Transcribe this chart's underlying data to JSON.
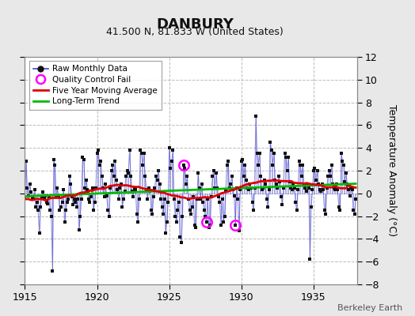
{
  "title": "DANBURY",
  "subtitle": "41.500 N, 81.833 W (United States)",
  "ylabel": "Temperature Anomaly (°C)",
  "credit": "Berkeley Earth",
  "xlim": [
    1915,
    1938
  ],
  "ylim": [
    -8,
    12
  ],
  "yticks": [
    -8,
    -6,
    -4,
    -2,
    0,
    2,
    4,
    6,
    8,
    10,
    12
  ],
  "xticks": [
    1915,
    1920,
    1925,
    1930,
    1935
  ],
  "background_color": "#e8e8e8",
  "plot_bg_color": "#ffffff",
  "raw_line_color": "#4444cc",
  "raw_marker_color": "#111111",
  "moving_avg_color": "#dd0000",
  "trend_color": "#00bb00",
  "qc_fail_color": "#ff00ff",
  "grid_color": "#bbbbbb",
  "raw_data": [
    1915.0,
    -0.3,
    1915.083,
    2.8,
    1915.167,
    0.5,
    1915.25,
    -0.2,
    1915.333,
    0.8,
    1915.417,
    0.1,
    1915.5,
    -0.4,
    1915.583,
    -0.5,
    1915.667,
    0.3,
    1915.75,
    -1.2,
    1915.833,
    -0.8,
    1915.917,
    -1.5,
    1916.0,
    -3.5,
    1916.083,
    -1.2,
    1916.167,
    -0.3,
    1916.25,
    0.1,
    1916.333,
    -0.5,
    1916.417,
    -0.2,
    1916.5,
    -0.8,
    1916.583,
    -0.9,
    1916.667,
    -0.3,
    1916.75,
    -1.5,
    1916.833,
    -2.0,
    1916.917,
    -6.8,
    1917.0,
    3.0,
    1917.083,
    2.5,
    1917.167,
    -0.2,
    1917.25,
    0.5,
    1917.333,
    -0.3,
    1917.417,
    -1.5,
    1917.5,
    -1.2,
    1917.583,
    -0.8,
    1917.667,
    0.3,
    1917.75,
    -2.5,
    1917.833,
    -1.5,
    1917.917,
    -0.8,
    1918.0,
    -0.5,
    1918.083,
    1.5,
    1918.167,
    0.8,
    1918.25,
    -0.3,
    1918.333,
    -1.0,
    1918.417,
    -0.5,
    1918.5,
    -0.8,
    1918.583,
    -1.2,
    1918.667,
    -0.5,
    1918.75,
    -3.2,
    1918.833,
    -2.0,
    1918.917,
    -0.5,
    1919.0,
    3.2,
    1919.083,
    3.0,
    1919.167,
    0.5,
    1919.25,
    1.2,
    1919.333,
    0.3,
    1919.417,
    -0.5,
    1919.5,
    -0.8,
    1919.583,
    -0.3,
    1919.667,
    0.5,
    1919.75,
    -1.5,
    1919.833,
    -0.8,
    1919.917,
    0.5,
    1920.0,
    3.5,
    1920.083,
    3.8,
    1920.167,
    2.5,
    1920.25,
    2.8,
    1920.333,
    1.5,
    1920.417,
    0.5,
    1920.5,
    -0.3,
    1920.583,
    0.8,
    1920.667,
    -0.2,
    1920.75,
    -1.5,
    1920.833,
    -2.0,
    1920.917,
    0.5,
    1921.0,
    2.0,
    1921.083,
    2.5,
    1921.167,
    1.5,
    1921.25,
    2.8,
    1921.333,
    1.2,
    1921.417,
    0.3,
    1921.5,
    -0.5,
    1921.583,
    0.5,
    1921.667,
    0.8,
    1921.75,
    -1.2,
    1921.833,
    -0.5,
    1921.917,
    0.2,
    1922.0,
    1.5,
    1922.083,
    2.0,
    1922.167,
    1.8,
    1922.25,
    3.8,
    1922.333,
    1.5,
    1922.417,
    0.2,
    1922.5,
    -0.3,
    1922.583,
    0.5,
    1922.667,
    0.3,
    1922.75,
    -1.8,
    1922.833,
    -2.5,
    1922.917,
    -0.5,
    1923.0,
    3.8,
    1923.083,
    3.5,
    1923.167,
    2.5,
    1923.25,
    3.5,
    1923.333,
    1.5,
    1923.417,
    0.3,
    1923.5,
    -0.5,
    1923.583,
    0.5,
    1923.667,
    0.2,
    1923.75,
    -1.5,
    1923.833,
    -1.8,
    1923.917,
    -0.3,
    1924.0,
    0.5,
    1924.083,
    1.5,
    1924.167,
    1.2,
    1924.25,
    2.0,
    1924.333,
    0.8,
    1924.417,
    -0.5,
    1924.5,
    -1.2,
    1924.583,
    -1.8,
    1924.667,
    -0.5,
    1924.75,
    -3.5,
    1924.833,
    -2.5,
    1924.917,
    -0.8,
    1925.0,
    4.0,
    1925.083,
    2.2,
    1925.167,
    2.8,
    1925.25,
    3.8,
    1925.333,
    -0.5,
    1925.417,
    -2.0,
    1925.5,
    -2.5,
    1925.583,
    -1.5,
    1925.667,
    -0.8,
    1925.75,
    -3.8,
    1925.833,
    -4.3,
    1925.917,
    -2.0,
    1926.0,
    2.5,
    1926.083,
    2.2,
    1926.167,
    0.8,
    1926.25,
    1.5,
    1926.333,
    -0.5,
    1926.417,
    -1.5,
    1926.5,
    -1.8,
    1926.583,
    -1.2,
    1926.667,
    -0.3,
    1926.75,
    -2.8,
    1926.833,
    -3.0,
    1926.917,
    -0.5,
    1927.0,
    1.8,
    1927.083,
    0.5,
    1927.167,
    -0.5,
    1927.25,
    0.8,
    1927.333,
    -0.8,
    1927.417,
    -1.5,
    1927.5,
    -2.0,
    1927.583,
    -2.5,
    1927.667,
    -0.5,
    1927.75,
    -3.0,
    1927.833,
    -2.8,
    1927.917,
    -0.3,
    1928.0,
    1.5,
    1928.083,
    2.0,
    1928.167,
    0.5,
    1928.25,
    1.8,
    1928.333,
    0.5,
    1928.417,
    -0.3,
    1928.5,
    -0.8,
    1928.583,
    -2.8,
    1928.667,
    -0.5,
    1928.75,
    -2.5,
    1928.833,
    -2.0,
    1928.917,
    0.2,
    1929.0,
    2.5,
    1929.083,
    2.8,
    1929.167,
    0.5,
    1929.25,
    0.8,
    1929.333,
    1.5,
    1929.417,
    0.3,
    1929.5,
    -0.2,
    1929.583,
    -2.8,
    1929.667,
    0.5,
    1929.75,
    -0.5,
    1929.833,
    -3.3,
    1929.917,
    0.3,
    1930.0,
    2.8,
    1930.083,
    3.0,
    1930.167,
    1.5,
    1930.25,
    2.5,
    1930.333,
    1.2,
    1930.417,
    0.5,
    1930.5,
    0.3,
    1930.583,
    0.8,
    1930.667,
    0.5,
    1930.75,
    -0.8,
    1930.833,
    -1.5,
    1930.917,
    0.5,
    1931.0,
    6.8,
    1931.083,
    3.5,
    1931.167,
    2.5,
    1931.25,
    3.5,
    1931.333,
    1.5,
    1931.417,
    0.3,
    1931.5,
    0.5,
    1931.583,
    1.2,
    1931.667,
    0.8,
    1931.75,
    -0.5,
    1931.833,
    -1.2,
    1931.917,
    0.3,
    1932.0,
    4.5,
    1932.083,
    3.8,
    1932.167,
    2.5,
    1932.25,
    3.5,
    1932.333,
    1.2,
    1932.417,
    0.8,
    1932.5,
    0.5,
    1932.583,
    1.5,
    1932.667,
    1.0,
    1932.75,
    -0.3,
    1932.833,
    -1.0,
    1932.917,
    0.5,
    1933.0,
    3.5,
    1933.083,
    3.2,
    1933.167,
    2.0,
    1933.25,
    3.2,
    1933.333,
    1.0,
    1933.417,
    0.5,
    1933.5,
    0.3,
    1933.583,
    0.8,
    1933.667,
    0.5,
    1933.75,
    -0.8,
    1933.833,
    -1.5,
    1933.917,
    0.3,
    1934.0,
    2.8,
    1934.083,
    2.5,
    1934.167,
    1.5,
    1934.25,
    2.5,
    1934.333,
    0.8,
    1934.417,
    0.5,
    1934.5,
    0.2,
    1934.583,
    0.8,
    1934.667,
    0.5,
    1934.75,
    -5.8,
    1934.833,
    -1.2,
    1934.917,
    0.3,
    1935.0,
    2.0,
    1935.083,
    2.2,
    1935.167,
    1.2,
    1935.25,
    2.0,
    1935.333,
    0.8,
    1935.417,
    0.3,
    1935.5,
    0.2,
    1935.583,
    0.8,
    1935.667,
    0.3,
    1935.75,
    -1.5,
    1935.833,
    -1.8,
    1935.917,
    0.5,
    1936.0,
    1.5,
    1936.083,
    2.0,
    1936.167,
    1.5,
    1936.25,
    2.5,
    1936.333,
    0.8,
    1936.417,
    0.5,
    1936.5,
    0.3,
    1936.583,
    0.8,
    1936.667,
    0.3,
    1936.75,
    -1.2,
    1936.833,
    -1.5,
    1936.917,
    3.5,
    1937.0,
    2.8,
    1937.083,
    2.5,
    1937.167,
    1.0,
    1937.25,
    1.8,
    1937.333,
    0.8,
    1937.417,
    0.3,
    1937.5,
    -0.2,
    1937.583,
    0.5,
    1937.667,
    0.3,
    1937.75,
    -1.5,
    1937.833,
    -1.8,
    1937.917,
    -0.5
  ],
  "qc_fail_points": [
    [
      1926.0,
      2.5
    ],
    [
      1927.583,
      -2.5
    ],
    [
      1929.583,
      -2.8
    ]
  ]
}
